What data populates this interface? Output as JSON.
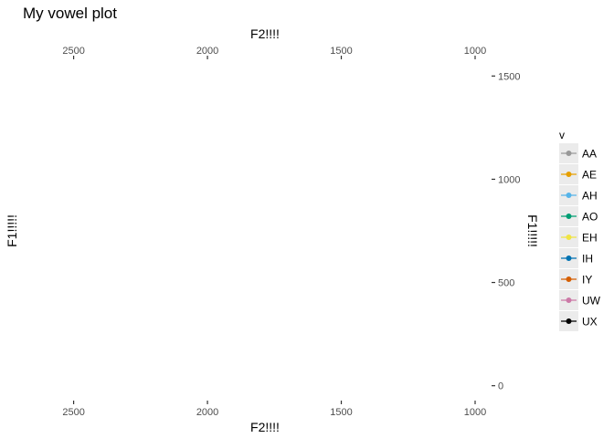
{
  "chart_data": {
    "type": "line",
    "title": "My vowel plot",
    "xlabel": "F2!!!!",
    "ylabel": "F1!!!!!",
    "xlim": [
      2700,
      1000
    ],
    "ylim": [
      1550,
      -50
    ],
    "x_reversed": true,
    "x_ticks": [
      2500,
      2000,
      1500,
      1000
    ],
    "y_ticks": [
      1500,
      1000,
      500,
      0
    ],
    "grid": false,
    "legend": {
      "title": "v",
      "placement": "right",
      "entries": [
        {
          "name": "AA",
          "color": "#999999"
        },
        {
          "name": "AE",
          "color": "#E69F00"
        },
        {
          "name": "AH",
          "color": "#56B4E9"
        },
        {
          "name": "AO",
          "color": "#009E73"
        },
        {
          "name": "EH",
          "color": "#F0E442"
        },
        {
          "name": "IH",
          "color": "#0072B2"
        },
        {
          "name": "IY",
          "color": "#D55E00"
        },
        {
          "name": "UW",
          "color": "#CC79A7"
        },
        {
          "name": "UX",
          "color": "#000000"
        }
      ]
    },
    "series": []
  }
}
